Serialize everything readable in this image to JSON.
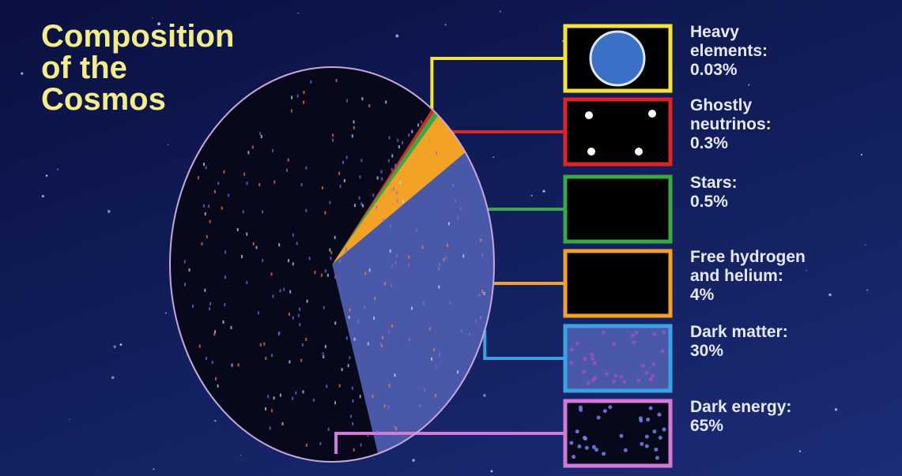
{
  "chart_data": {
    "type": "pie",
    "title": "Composition of the Cosmos",
    "categories": [
      "Heavy elements:",
      "Ghostly neutrinos:",
      "Stars:",
      "Free hydrogen and helium:",
      "Dark matter:",
      "Dark energy:"
    ],
    "values": [
      0.03,
      0.3,
      0.5,
      4,
      30,
      65
    ],
    "value_labels": [
      "0.03%",
      "0.3%",
      "0.5%",
      "4%",
      "30%",
      "65%"
    ],
    "colors": [
      "#f2e23a",
      "#e02424",
      "#3aa843",
      "#f2a224",
      "#4a58a8",
      "#07081a"
    ],
    "box_colors": [
      "#f2e23a",
      "#e02424",
      "#3aa843",
      "#f2a224",
      "#3aa3e6",
      "#d27ad6"
    ]
  }
}
